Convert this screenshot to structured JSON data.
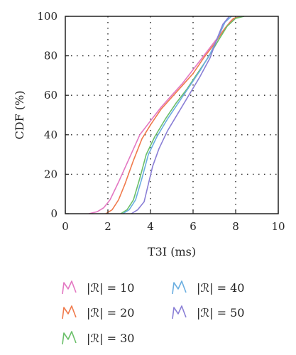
{
  "chart_data": {
    "type": "line",
    "xlabel": "T3I (ms)",
    "ylabel": "CDF (%)",
    "xlim": [
      0,
      10
    ],
    "ylim": [
      0,
      100
    ],
    "xticks": [
      "0",
      "2",
      "4",
      "6",
      "8",
      "10"
    ],
    "yticks": [
      "0",
      "20",
      "40",
      "60",
      "80",
      "100"
    ],
    "grid": "dotted",
    "legend_position": "bottom",
    "series": [
      {
        "name": "|ℛ| = 10",
        "color": "#e377c2",
        "points": [
          [
            1.1,
            0
          ],
          [
            1.5,
            1
          ],
          [
            1.8,
            3
          ],
          [
            2.1,
            7
          ],
          [
            2.5,
            16
          ],
          [
            3.0,
            28
          ],
          [
            3.5,
            40
          ],
          [
            4.0,
            47
          ],
          [
            4.5,
            54
          ],
          [
            5.0,
            60
          ],
          [
            5.5,
            66
          ],
          [
            6.0,
            73
          ],
          [
            6.5,
            80
          ],
          [
            7.0,
            87
          ],
          [
            7.5,
            94
          ],
          [
            7.8,
            98
          ],
          [
            8.2,
            100
          ]
        ]
      },
      {
        "name": "|ℛ| = 20",
        "color": "#f07a4c",
        "points": [
          [
            1.9,
            0
          ],
          [
            2.2,
            2
          ],
          [
            2.5,
            7
          ],
          [
            2.8,
            15
          ],
          [
            3.2,
            27
          ],
          [
            3.6,
            38
          ],
          [
            4.0,
            45
          ],
          [
            4.5,
            53
          ],
          [
            5.0,
            59
          ],
          [
            5.5,
            65
          ],
          [
            6.0,
            71
          ],
          [
            6.5,
            79
          ],
          [
            7.0,
            86
          ],
          [
            7.5,
            94
          ],
          [
            7.9,
            99
          ],
          [
            8.3,
            100
          ]
        ]
      },
      {
        "name": "|ℛ| = 30",
        "color": "#6abf69",
        "points": [
          [
            2.6,
            0
          ],
          [
            2.9,
            2
          ],
          [
            3.2,
            7
          ],
          [
            3.5,
            18
          ],
          [
            3.8,
            30
          ],
          [
            4.2,
            39
          ],
          [
            4.7,
            48
          ],
          [
            5.2,
            56
          ],
          [
            5.7,
            63
          ],
          [
            6.2,
            71
          ],
          [
            6.7,
            79
          ],
          [
            7.2,
            88
          ],
          [
            7.6,
            95
          ],
          [
            8.0,
            99
          ],
          [
            8.4,
            100
          ]
        ]
      },
      {
        "name": "|ℛ| = 40",
        "color": "#6aaee0",
        "points": [
          [
            2.7,
            0
          ],
          [
            3.0,
            2
          ],
          [
            3.3,
            7
          ],
          [
            3.6,
            18
          ],
          [
            3.9,
            30
          ],
          [
            4.3,
            39
          ],
          [
            4.8,
            48
          ],
          [
            5.3,
            56
          ],
          [
            5.8,
            64
          ],
          [
            6.3,
            72
          ],
          [
            6.8,
            81
          ],
          [
            7.2,
            90
          ],
          [
            7.5,
            97
          ],
          [
            7.8,
            100
          ]
        ]
      },
      {
        "name": "|ℛ| = 50",
        "color": "#8a7fd6",
        "points": [
          [
            3.1,
            0
          ],
          [
            3.4,
            2
          ],
          [
            3.7,
            6
          ],
          [
            3.9,
            15
          ],
          [
            4.1,
            24
          ],
          [
            4.4,
            33
          ],
          [
            4.8,
            42
          ],
          [
            5.3,
            51
          ],
          [
            5.8,
            60
          ],
          [
            6.3,
            69
          ],
          [
            6.8,
            79
          ],
          [
            7.1,
            88
          ],
          [
            7.4,
            96
          ],
          [
            7.7,
            100
          ]
        ]
      }
    ]
  }
}
